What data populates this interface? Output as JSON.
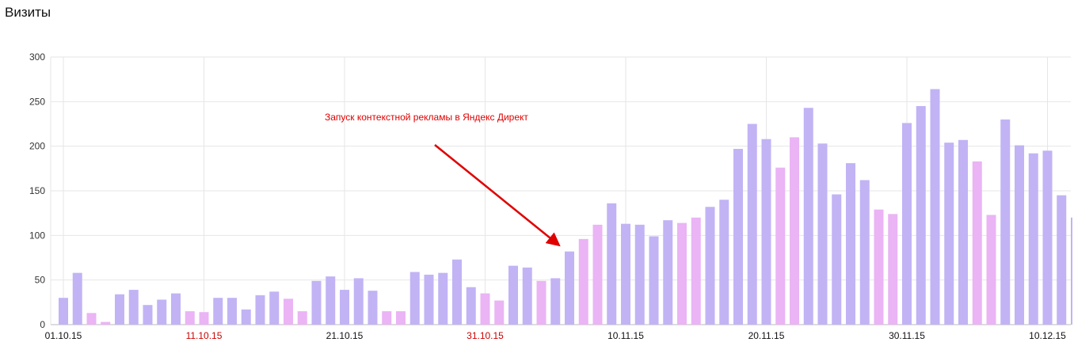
{
  "chart_data": {
    "type": "bar",
    "title": "Визиты",
    "ylim": [
      0,
      300
    ],
    "yticks": [
      0,
      50,
      100,
      150,
      200,
      250,
      300
    ],
    "grid": true,
    "x_tick_labels": [
      {
        "label": "01.10.15",
        "index": 0,
        "color": "#111111"
      },
      {
        "label": "11.10.15",
        "index": 10,
        "color": "#cc0000"
      },
      {
        "label": "21.10.15",
        "index": 20,
        "color": "#111111"
      },
      {
        "label": "31.10.15",
        "index": 30,
        "color": "#cc0000"
      },
      {
        "label": "10.11.15",
        "index": 40,
        "color": "#111111"
      },
      {
        "label": "20.11.15",
        "index": 50,
        "color": "#111111"
      },
      {
        "label": "30.11.15",
        "index": 60,
        "color": "#111111"
      },
      {
        "label": "10.12.15",
        "index": 70,
        "color": "#111111"
      }
    ],
    "colors": {
      "weekday": "#c2b3f5",
      "weekend": "#eab4f5"
    },
    "annotation": {
      "text": "Запуск контекстной рекламы в Яндекс Директ",
      "color": "#e00000",
      "target_index": 36
    },
    "values": [
      30,
      58,
      13,
      3,
      34,
      39,
      22,
      28,
      35,
      15,
      14,
      30,
      30,
      17,
      33,
      37,
      29,
      15,
      49,
      54,
      39,
      52,
      38,
      15,
      15,
      59,
      56,
      58,
      73,
      42,
      35,
      27,
      66,
      64,
      49,
      52,
      82,
      96,
      112,
      136,
      113,
      112,
      99,
      117,
      114,
      120,
      132,
      140,
      197,
      225,
      208,
      176,
      210,
      243,
      203,
      146,
      181,
      162,
      129,
      124,
      226,
      245,
      264,
      204,
      207,
      183,
      123,
      230,
      201,
      192,
      195,
      145,
      120
    ],
    "weekend": [
      false,
      false,
      true,
      true,
      false,
      false,
      false,
      false,
      false,
      true,
      true,
      false,
      false,
      false,
      false,
      false,
      true,
      true,
      false,
      false,
      false,
      false,
      false,
      true,
      true,
      false,
      false,
      false,
      false,
      false,
      true,
      true,
      false,
      false,
      true,
      false,
      false,
      true,
      true,
      false,
      false,
      false,
      false,
      false,
      true,
      true,
      false,
      false,
      false,
      false,
      false,
      true,
      true,
      false,
      false,
      false,
      false,
      false,
      true,
      true,
      false,
      false,
      false,
      false,
      false,
      true,
      true,
      false,
      false,
      false,
      false,
      false,
      false
    ]
  }
}
